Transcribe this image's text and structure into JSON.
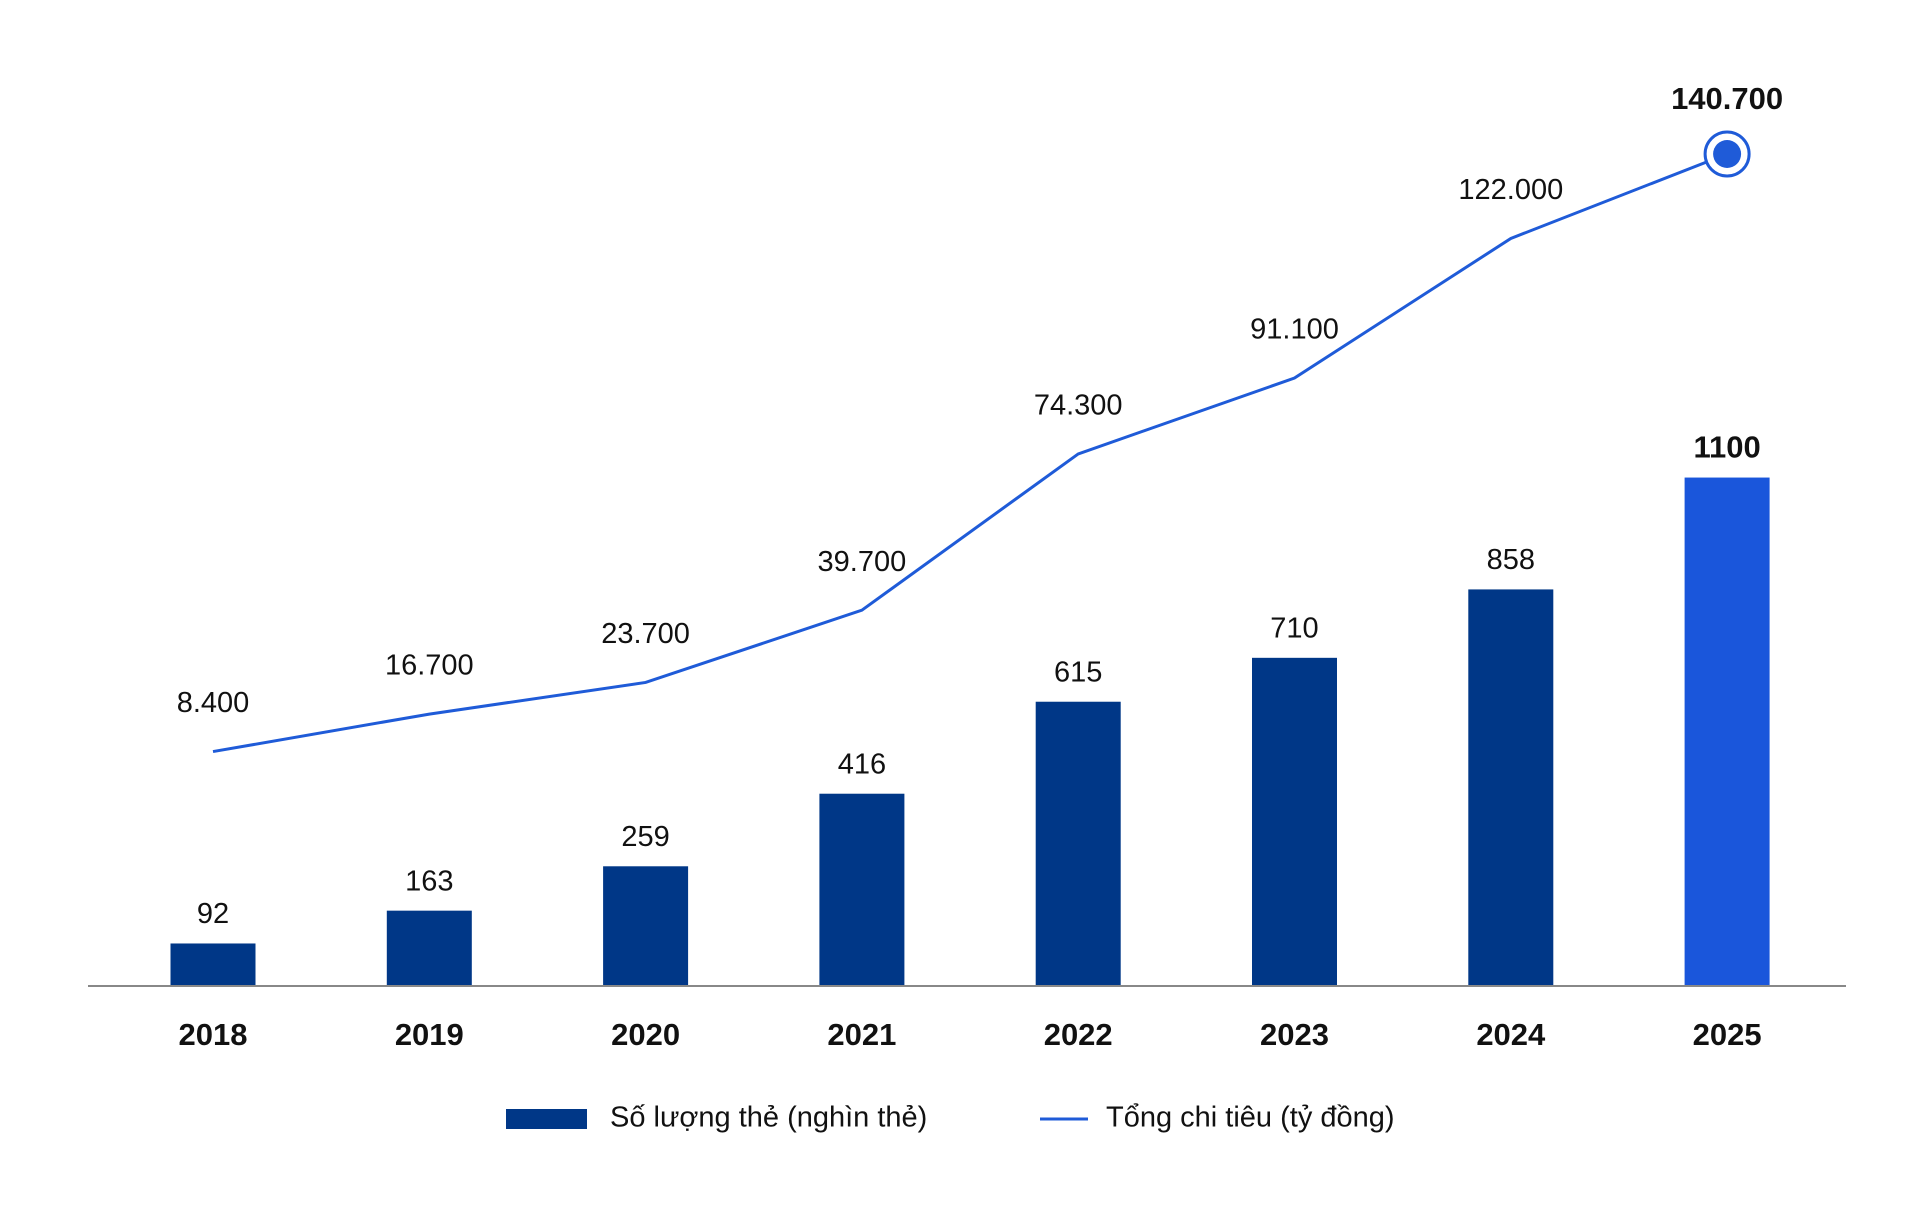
{
  "chart_data": {
    "type": "bar",
    "categories": [
      "2018",
      "2019",
      "2020",
      "2021",
      "2022",
      "2023",
      "2024",
      "2025"
    ],
    "series": [
      {
        "name": "Số lượng thẻ (nghìn thẻ)",
        "type": "bar",
        "color": "#003787",
        "colors": [
          "#003787",
          "#003787",
          "#003787",
          "#003787",
          "#003787",
          "#003787",
          "#003787",
          "#1a56db"
        ],
        "values": [
          92,
          163,
          259,
          416,
          615,
          710,
          858,
          1100
        ]
      },
      {
        "name": "Tổng chi tiêu (tỷ đồng)",
        "type": "line",
        "axis": "y2",
        "color": "#1f5bd8",
        "values": [
          8400,
          16700,
          23700,
          39700,
          74300,
          91100,
          122000,
          140700
        ],
        "value_labels": [
          "8.400",
          "16.700",
          "23.700",
          "39.700",
          "74.300",
          "91.100",
          "122.000",
          "140.700"
        ]
      }
    ],
    "highlight_index": 7,
    "ylim": [
      0,
      1800
    ],
    "y2lim": [
      -43500,
      140700
    ],
    "legend": "bottom"
  }
}
